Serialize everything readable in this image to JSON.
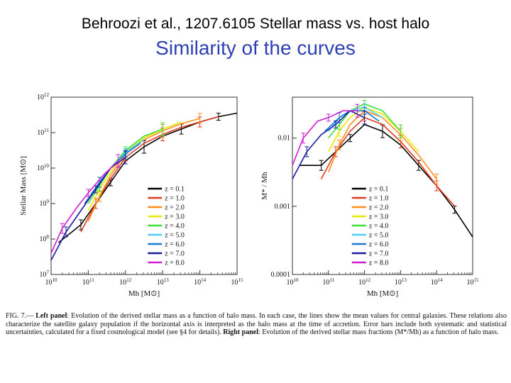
{
  "header": {
    "title": "Behroozi et al., 1207.6105 Stellar mass vs. host halo",
    "subtitle": "Similarity of the curves"
  },
  "caption": {
    "fig_label": "FIG. 7.—",
    "left_label": "Left panel",
    "left_text": ": Evolution of the derived stellar mass as a function of halo mass. In each case, the lines show the mean values for central galaxies. These relations also characterize the satellite galaxy population if the horizontal axis is interpreted as the halo mass at the time of accretion. Error bars include both systematic and statistical uncertainties, calculated for a fixed cosmological model (see §4 for details).",
    "right_label": "Right panel",
    "right_text": ": Evolution of the derived stellar mass fractions (M*/Mh) as a function of halo mass."
  },
  "colors": {
    "title_blue": "#2d3fb5",
    "series": [
      "#000000",
      "#e23a1f",
      "#ff8c1a",
      "#e8e800",
      "#ffe000",
      "#3ce03c",
      "#4dd0f5",
      "#1e78d2",
      "#1a1aa0",
      "#d21ed2"
    ]
  },
  "chart_data": [
    {
      "type": "line",
      "xlabel": "Mh [M⊙]",
      "ylabel": "Stellar Mass [M⊙]",
      "xscale": "log",
      "yscale": "log",
      "xlim": [
        10000000000.0,
        1000000000000000.0
      ],
      "ylim": [
        10000000.0,
        1000000000000.0
      ],
      "xticks": [
        "10^10",
        "10^11",
        "10^12",
        "10^13",
        "10^14",
        "10^15"
      ],
      "yticks": [
        "10^7",
        "10^8",
        "10^9",
        "10^10",
        "10^11",
        "10^12"
      ],
      "legend_position": "lower-right",
      "series": [
        {
          "name": "z = 0.1",
          "x": [
            10.2,
            10.8,
            11.2,
            11.6,
            12.0,
            12.5,
            13.0,
            13.5,
            14.0,
            14.5,
            15.0
          ],
          "y": [
            7.9,
            8.4,
            9.0,
            9.6,
            10.2,
            10.6,
            10.9,
            11.1,
            11.3,
            11.45,
            11.55
          ]
        },
        {
          "name": "z = 1.0",
          "x": [
            10.8,
            11.2,
            11.6,
            12.0,
            12.5,
            13.0,
            13.5,
            14.0,
            14.5
          ],
          "y": [
            8.2,
            9.0,
            9.7,
            10.3,
            10.7,
            10.95,
            11.15,
            11.3,
            11.45
          ]
        },
        {
          "name": "z = 2.0",
          "x": [
            11.0,
            11.3,
            11.6,
            12.0,
            12.5,
            13.0,
            13.5,
            14.0
          ],
          "y": [
            8.5,
            9.2,
            9.8,
            10.4,
            10.8,
            11.05,
            11.25,
            11.4
          ]
        },
        {
          "name": "z = 3.0",
          "x": [
            11.0,
            11.3,
            11.6,
            12.0,
            12.5,
            13.0,
            13.5
          ],
          "y": [
            8.8,
            9.4,
            9.9,
            10.45,
            10.85,
            11.1,
            11.3
          ]
        },
        {
          "name": "z = 4.0",
          "x": [
            11.0,
            11.3,
            11.6,
            12.0,
            12.5,
            13.0
          ],
          "y": [
            9.0,
            9.5,
            10.0,
            10.5,
            10.9,
            11.1
          ]
        },
        {
          "name": "z = 5.0",
          "x": [
            11.0,
            11.3,
            11.6,
            12.0,
            12.5
          ],
          "y": [
            9.1,
            9.6,
            10.0,
            10.45,
            10.8
          ]
        },
        {
          "name": "z = 6.0",
          "x": [
            10.9,
            11.3,
            11.6,
            12.0,
            12.4
          ],
          "y": [
            9.0,
            9.6,
            10.0,
            10.4,
            10.7
          ]
        },
        {
          "name": "z = 7.0",
          "x": [
            10.0,
            10.4,
            10.8,
            11.2,
            11.6,
            12.0
          ],
          "y": [
            7.4,
            8.2,
            8.8,
            9.4,
            10.0,
            10.3
          ]
        },
        {
          "name": "z = 8.0",
          "x": [
            10.0,
            10.3,
            10.7,
            11.0,
            11.4,
            11.8
          ],
          "y": [
            7.6,
            8.3,
            8.9,
            9.3,
            9.8,
            10.2
          ]
        }
      ]
    },
    {
      "type": "line",
      "xlabel": "Mh [M⊙]",
      "ylabel": "M* / Mh",
      "xscale": "log",
      "yscale": "log",
      "xlim": [
        10000000000.0,
        1000000000000000.0
      ],
      "ylim": [
        0.0001,
        0.04
      ],
      "xticks": [
        "10^10",
        "10^11",
        "10^12",
        "10^13",
        "10^14",
        "10^15"
      ],
      "yticks": [
        "0.0001",
        "0.001",
        "0.01"
      ],
      "legend_position": "lower-center",
      "series": [
        {
          "name": "z = 0.1",
          "x": [
            10.2,
            10.8,
            11.2,
            11.6,
            12.0,
            12.5,
            13.0,
            13.5,
            14.0,
            14.5,
            15.0
          ],
          "y": [
            -2.4,
            -2.4,
            -2.2,
            -2.0,
            -1.8,
            -1.9,
            -2.1,
            -2.4,
            -2.7,
            -3.05,
            -3.45
          ]
        },
        {
          "name": "z = 1.0",
          "x": [
            10.8,
            11.2,
            11.6,
            12.0,
            12.5,
            13.0,
            13.5,
            14.0,
            14.5
          ],
          "y": [
            -2.6,
            -2.2,
            -1.9,
            -1.7,
            -1.8,
            -2.05,
            -2.35,
            -2.7,
            -3.0
          ]
        },
        {
          "name": "z = 2.0",
          "x": [
            11.0,
            11.3,
            11.6,
            12.0,
            12.5,
            13.0,
            13.5,
            14.0
          ],
          "y": [
            -2.5,
            -2.1,
            -1.8,
            -1.6,
            -1.7,
            -1.95,
            -2.25,
            -2.6
          ]
        },
        {
          "name": "z = 3.0",
          "x": [
            11.0,
            11.3,
            11.6,
            12.0,
            12.5,
            13.0,
            13.5
          ],
          "y": [
            -2.2,
            -1.9,
            -1.7,
            -1.55,
            -1.65,
            -1.9,
            -2.2
          ]
        },
        {
          "name": "z = 4.0",
          "x": [
            11.0,
            11.3,
            11.6,
            12.0,
            12.5,
            13.0
          ],
          "y": [
            -2.0,
            -1.8,
            -1.6,
            -1.5,
            -1.6,
            -1.9
          ]
        },
        {
          "name": "z = 5.0",
          "x": [
            11.0,
            11.3,
            11.6,
            12.0,
            12.5
          ],
          "y": [
            -1.9,
            -1.7,
            -1.6,
            -1.55,
            -1.7
          ]
        },
        {
          "name": "z = 6.0",
          "x": [
            10.9,
            11.3,
            11.6,
            12.0,
            12.4
          ],
          "y": [
            -1.9,
            -1.7,
            -1.6,
            -1.6,
            -1.75
          ]
        },
        {
          "name": "z = 7.0",
          "x": [
            10.0,
            10.4,
            10.8,
            11.2,
            11.6,
            12.0
          ],
          "y": [
            -2.6,
            -2.2,
            -1.95,
            -1.8,
            -1.6,
            -1.7
          ]
        },
        {
          "name": "z = 8.0",
          "x": [
            10.0,
            10.3,
            10.7,
            11.0,
            11.4,
            11.8
          ],
          "y": [
            -2.4,
            -2.0,
            -1.75,
            -1.7,
            -1.6,
            -1.6
          ]
        }
      ]
    }
  ]
}
